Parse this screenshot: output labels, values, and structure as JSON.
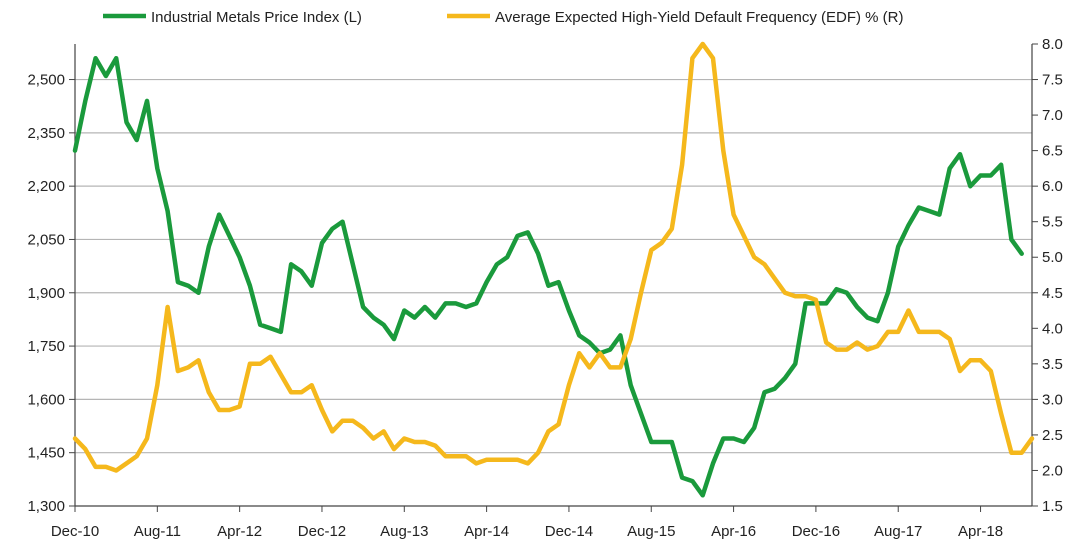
{
  "chart_data": {
    "type": "line",
    "title": "",
    "xlabel": "",
    "ylabel_left": "",
    "ylabel_right": "",
    "x_ticks": [
      "Dec-10",
      "Aug-11",
      "Apr-12",
      "Dec-12",
      "Aug-13",
      "Apr-14",
      "Dec-14",
      "Aug-15",
      "Apr-16",
      "Dec-16",
      "Aug-17",
      "Apr-18"
    ],
    "y_left": {
      "min": 1300,
      "max": 2600,
      "ticks": [
        "1,300",
        "1,450",
        "1,600",
        "1,750",
        "1,900",
        "2,050",
        "2,200",
        "2,350",
        "2,500"
      ],
      "tick_values": [
        1300,
        1450,
        1600,
        1750,
        1900,
        2050,
        2200,
        2350,
        2500
      ]
    },
    "y_right": {
      "min": 1.5,
      "max": 8.0,
      "ticks": [
        "1.5",
        "2.0",
        "2.5",
        "3.0",
        "3.5",
        "4.0",
        "4.5",
        "5.0",
        "5.5",
        "6.0",
        "6.5",
        "7.0",
        "7.5",
        "8.0"
      ],
      "tick_values": [
        1.5,
        2.0,
        2.5,
        3.0,
        3.5,
        4.0,
        4.5,
        5.0,
        5.5,
        6.0,
        6.5,
        7.0,
        7.5,
        8.0
      ]
    },
    "grid": true,
    "legend_position": "top",
    "series": [
      {
        "name": "Industrial Metals Price Index (L)",
        "axis": "left",
        "color": "#1a9a3c",
        "points": [
          [
            0,
            2300
          ],
          [
            1,
            2440
          ],
          [
            2,
            2560
          ],
          [
            3,
            2510
          ],
          [
            4,
            2560
          ],
          [
            5,
            2380
          ],
          [
            6,
            2330
          ],
          [
            7,
            2440
          ],
          [
            8,
            2250
          ],
          [
            9,
            2130
          ],
          [
            10,
            1930
          ],
          [
            11,
            1920
          ],
          [
            12,
            1900
          ],
          [
            13,
            2030
          ],
          [
            14,
            2120
          ],
          [
            15,
            2060
          ],
          [
            16,
            2000
          ],
          [
            17,
            1920
          ],
          [
            18,
            1810
          ],
          [
            19,
            1800
          ],
          [
            20,
            1790
          ],
          [
            21,
            1980
          ],
          [
            22,
            1960
          ],
          [
            23,
            1920
          ],
          [
            24,
            2040
          ],
          [
            25,
            2080
          ],
          [
            26,
            2100
          ],
          [
            27,
            1980
          ],
          [
            28,
            1860
          ],
          [
            29,
            1830
          ],
          [
            30,
            1810
          ],
          [
            31,
            1770
          ],
          [
            32,
            1850
          ],
          [
            33,
            1830
          ],
          [
            34,
            1860
          ],
          [
            35,
            1830
          ],
          [
            36,
            1870
          ],
          [
            37,
            1870
          ],
          [
            38,
            1860
          ],
          [
            39,
            1870
          ],
          [
            40,
            1930
          ],
          [
            41,
            1980
          ],
          [
            42,
            2000
          ],
          [
            43,
            2060
          ],
          [
            44,
            2070
          ],
          [
            45,
            2010
          ],
          [
            46,
            1920
          ],
          [
            47,
            1930
          ],
          [
            48,
            1850
          ],
          [
            49,
            1780
          ],
          [
            50,
            1760
          ],
          [
            51,
            1730
          ],
          [
            52,
            1740
          ],
          [
            53,
            1780
          ],
          [
            54,
            1640
          ],
          [
            55,
            1560
          ],
          [
            56,
            1480
          ],
          [
            57,
            1480
          ],
          [
            58,
            1480
          ],
          [
            59,
            1380
          ],
          [
            60,
            1370
          ],
          [
            61,
            1330
          ],
          [
            62,
            1420
          ],
          [
            63,
            1490
          ],
          [
            64,
            1490
          ],
          [
            65,
            1480
          ],
          [
            66,
            1520
          ],
          [
            67,
            1620
          ],
          [
            68,
            1630
          ],
          [
            69,
            1660
          ],
          [
            70,
            1700
          ],
          [
            71,
            1870
          ],
          [
            72,
            1870
          ],
          [
            73,
            1870
          ],
          [
            74,
            1910
          ],
          [
            75,
            1900
          ],
          [
            76,
            1860
          ],
          [
            77,
            1830
          ],
          [
            78,
            1820
          ],
          [
            79,
            1900
          ],
          [
            80,
            2030
          ],
          [
            81,
            2090
          ],
          [
            82,
            2140
          ],
          [
            83,
            2130
          ],
          [
            84,
            2120
          ],
          [
            85,
            2250
          ],
          [
            86,
            2290
          ],
          [
            87,
            2200
          ],
          [
            88,
            2230
          ],
          [
            89,
            2230
          ],
          [
            90,
            2260
          ],
          [
            91,
            2050
          ],
          [
            92,
            2010
          ]
        ]
      },
      {
        "name": "Average Expected High-Yield Default Frequency (EDF) % (R)",
        "axis": "right",
        "color": "#f5b81c",
        "points": [
          [
            0,
            2.45
          ],
          [
            1,
            2.3
          ],
          [
            2,
            2.05
          ],
          [
            3,
            2.05
          ],
          [
            4,
            2.0
          ],
          [
            5,
            2.1
          ],
          [
            6,
            2.2
          ],
          [
            7,
            2.45
          ],
          [
            8,
            3.2
          ],
          [
            9,
            4.3
          ],
          [
            10,
            3.4
          ],
          [
            11,
            3.45
          ],
          [
            12,
            3.55
          ],
          [
            13,
            3.1
          ],
          [
            14,
            2.85
          ],
          [
            15,
            2.85
          ],
          [
            16,
            2.9
          ],
          [
            17,
            3.5
          ],
          [
            18,
            3.5
          ],
          [
            19,
            3.6
          ],
          [
            20,
            3.35
          ],
          [
            21,
            3.1
          ],
          [
            22,
            3.1
          ],
          [
            23,
            3.2
          ],
          [
            24,
            2.85
          ],
          [
            25,
            2.55
          ],
          [
            26,
            2.7
          ],
          [
            27,
            2.7
          ],
          [
            28,
            2.6
          ],
          [
            29,
            2.45
          ],
          [
            30,
            2.55
          ],
          [
            31,
            2.3
          ],
          [
            32,
            2.45
          ],
          [
            33,
            2.4
          ],
          [
            34,
            2.4
          ],
          [
            35,
            2.35
          ],
          [
            36,
            2.2
          ],
          [
            37,
            2.2
          ],
          [
            38,
            2.2
          ],
          [
            39,
            2.1
          ],
          [
            40,
            2.15
          ],
          [
            41,
            2.15
          ],
          [
            42,
            2.15
          ],
          [
            43,
            2.15
          ],
          [
            44,
            2.1
          ],
          [
            45,
            2.25
          ],
          [
            46,
            2.55
          ],
          [
            47,
            2.65
          ],
          [
            48,
            3.2
          ],
          [
            49,
            3.65
          ],
          [
            50,
            3.45
          ],
          [
            51,
            3.65
          ],
          [
            52,
            3.45
          ],
          [
            53,
            3.45
          ],
          [
            54,
            3.85
          ],
          [
            55,
            4.5
          ],
          [
            56,
            5.1
          ],
          [
            57,
            5.2
          ],
          [
            58,
            5.4
          ],
          [
            59,
            6.3
          ],
          [
            60,
            7.8
          ],
          [
            61,
            8.0
          ],
          [
            62,
            7.8
          ],
          [
            63,
            6.5
          ],
          [
            64,
            5.6
          ],
          [
            65,
            5.3
          ],
          [
            66,
            5.0
          ],
          [
            67,
            4.9
          ],
          [
            68,
            4.7
          ],
          [
            69,
            4.5
          ],
          [
            70,
            4.45
          ],
          [
            71,
            4.45
          ],
          [
            72,
            4.4
          ],
          [
            73,
            3.8
          ],
          [
            74,
            3.7
          ],
          [
            75,
            3.7
          ],
          [
            76,
            3.8
          ],
          [
            77,
            3.7
          ],
          [
            78,
            3.75
          ],
          [
            79,
            3.95
          ],
          [
            80,
            3.95
          ],
          [
            81,
            4.25
          ],
          [
            82,
            3.95
          ],
          [
            83,
            3.95
          ],
          [
            84,
            3.95
          ],
          [
            85,
            3.85
          ],
          [
            86,
            3.4
          ],
          [
            87,
            3.55
          ],
          [
            88,
            3.55
          ],
          [
            89,
            3.4
          ],
          [
            90,
            2.8
          ],
          [
            91,
            2.25
          ],
          [
            92,
            2.25
          ],
          [
            93,
            2.45
          ]
        ]
      }
    ]
  }
}
